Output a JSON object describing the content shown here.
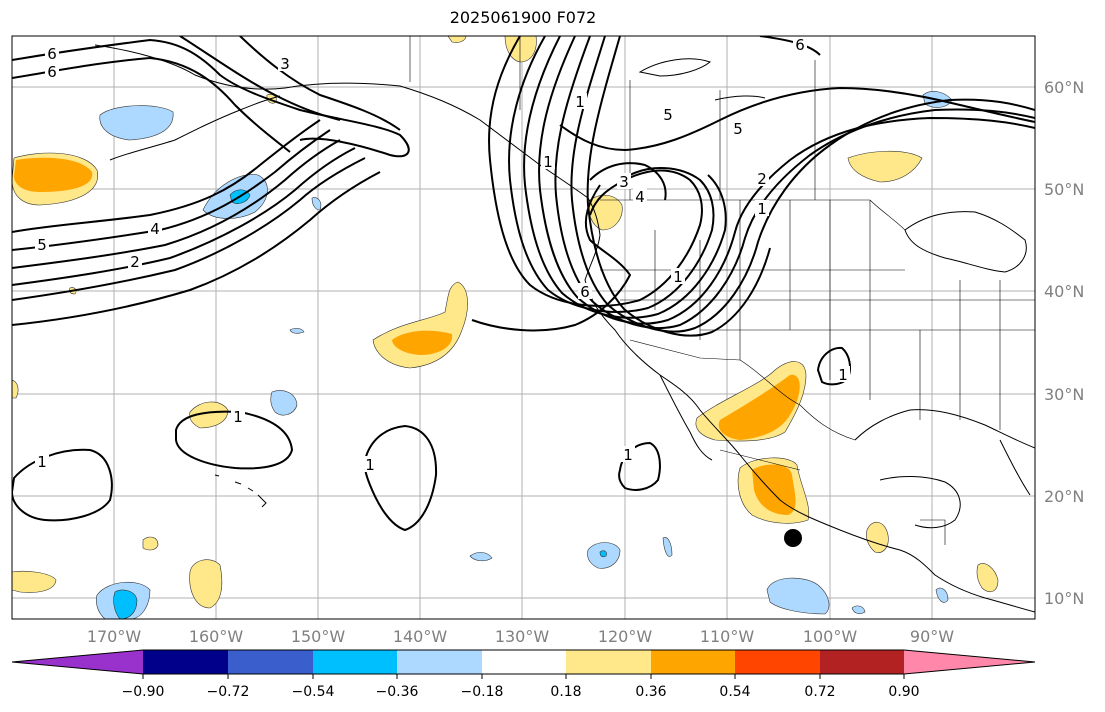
{
  "title": "2025061900 F072",
  "lat_labels": [
    "60°N",
    "50°N",
    "40°N",
    "30°N",
    "20°N",
    "10°N"
  ],
  "lon_labels": [
    "170°W",
    "160°W",
    "150°W",
    "140°W",
    "130°W",
    "120°W",
    "110°W",
    "100°W",
    "90°W"
  ],
  "contour_labels": [
    "1",
    "1",
    "1",
    "1",
    "1",
    "1",
    "1",
    "1",
    "1",
    "2",
    "2",
    "3",
    "3",
    "4",
    "4",
    "5",
    "5",
    "5",
    "6",
    "6",
    "6",
    "6"
  ],
  "colorbar": {
    "ticks": [
      "−0.90",
      "−0.72",
      "−0.54",
      "−0.36",
      "−0.18",
      "0.18",
      "0.36",
      "0.54",
      "0.72",
      "0.90"
    ],
    "colors": [
      "#9932cc",
      "#00008b",
      "#3a5fcd",
      "#00bfff",
      "#add8ff",
      "#ffffff",
      "#ffe88a",
      "#ffa500",
      "#ff4500",
      "#b22222",
      "#ff88aa"
    ]
  },
  "fill_colors": {
    "light_yellow": "#ffe88a",
    "orange": "#ffa500",
    "light_blue": "#add8ff",
    "deep_sky": "#00bfff"
  }
}
